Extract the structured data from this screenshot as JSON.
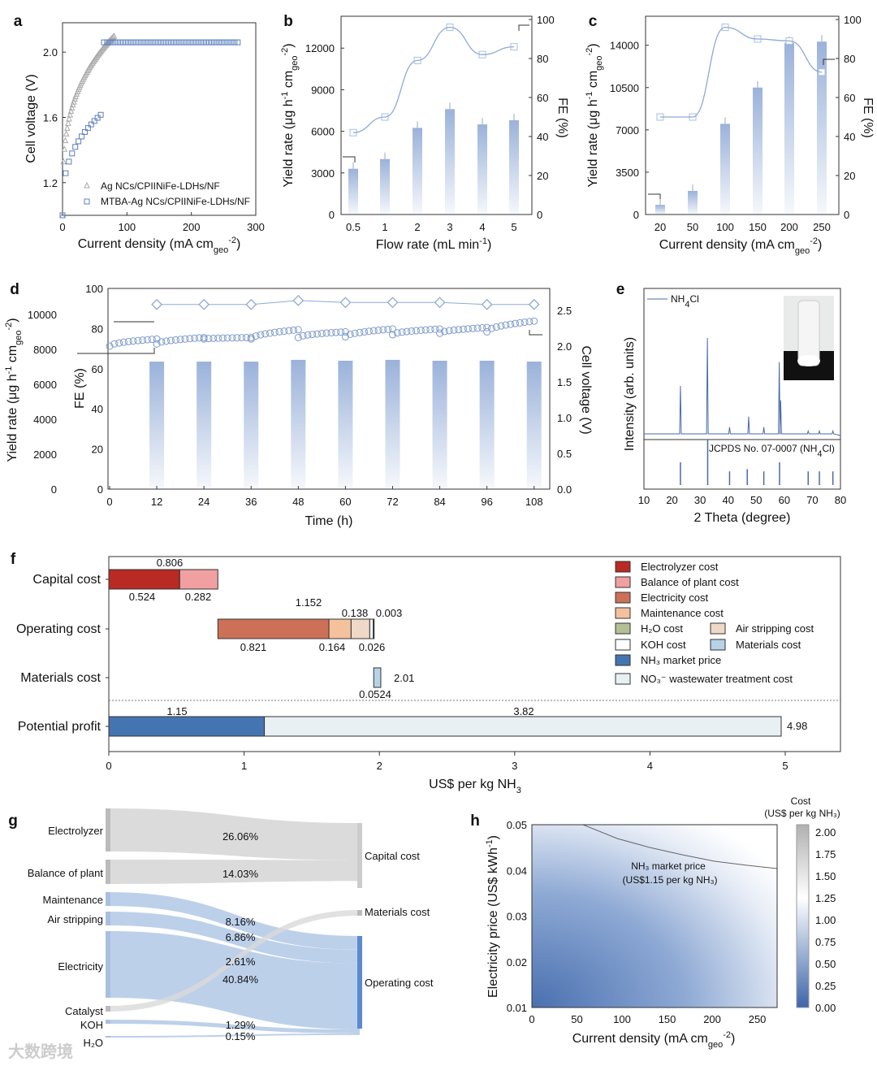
{
  "colors": {
    "blue": "#5b7fbf",
    "lightblue": "#a9bfe0",
    "grey": "#b0b0b0",
    "electrolyzer": "#b82a23",
    "bop": "#f0a0a0",
    "electricity": "#cc7058",
    "maintenance": "#f4c19d",
    "h2o": "#b5bf96",
    "air": "#f0d8c8",
    "koh": "#ffffff",
    "materials": "#b8d2e6",
    "nh3": "#4575b0",
    "no3": "#e8f0f4"
  },
  "watermark": "大数跨境",
  "chart_data": [
    {
      "panel": "a",
      "type": "scatter",
      "xlabel": "Current density (mA cm",
      "xsub": "geo",
      "xsup": "-2",
      "ylabel": "Cell voltage (V)",
      "xlim": [
        0,
        300
      ],
      "ylim": [
        1.0,
        2.18
      ],
      "xticks": [
        "0",
        "100",
        "200",
        "300"
      ],
      "yticks": [
        "1.2",
        "1.6",
        "2.0"
      ],
      "series": [
        {
          "name": "Ag NCs/CPIINiFe-LDHs/NF",
          "x_max": 80,
          "v_start": 1.0,
          "v_end": 2.1
        },
        {
          "name": "MTBA-Ag NCs/CPIINiFe-LDHs/NF",
          "x_max": 272,
          "v_start": 1.0,
          "v_end": 2.06
        }
      ]
    },
    {
      "panel": "b",
      "type": "bar+line",
      "xlabel": "Flow rate (mL min",
      "xsup": "-1",
      "ylabel": "Yield rate (μg h",
      "ylabel_sup": "-1",
      "ylabel_mid": " cm",
      "ylabel_sub": "geo",
      "ylabel_sup2": "-2",
      "y2label": "FE (%)",
      "categories": [
        "0.5",
        "1",
        "2",
        "3",
        "4",
        "5"
      ],
      "ylim": [
        0,
        14300
      ],
      "yticks": [
        "0",
        "3000",
        "6000",
        "9000",
        "12000"
      ],
      "y2ticks": [
        "0",
        "20",
        "40",
        "60",
        "80",
        "100"
      ],
      "series": [
        {
          "name": "Yield rate",
          "values": [
            3300,
            4000,
            6250,
            7600,
            6500,
            6800
          ]
        },
        {
          "name": "FE",
          "values": [
            42,
            50,
            79,
            96,
            82,
            86
          ]
        }
      ]
    },
    {
      "panel": "c",
      "type": "bar+line",
      "xlabel": "Current density (mA cm",
      "xsub": "geo",
      "xsup": "-2",
      "ylabel": "Yield rate (μg h",
      "y2label": "FE (%)",
      "categories": [
        "20",
        "50",
        "100",
        "150",
        "200",
        "250"
      ],
      "ylim": [
        0,
        16400
      ],
      "yticks": [
        "0",
        "3500",
        "7000",
        "10500",
        "14000"
      ],
      "y2ticks": [
        "0",
        "20",
        "40",
        "60",
        "80",
        "100"
      ],
      "series": [
        {
          "name": "Yield rate",
          "values": [
            800,
            1950,
            7500,
            10500,
            14200,
            14300
          ]
        },
        {
          "name": "FE",
          "values": [
            50,
            50,
            96,
            90,
            89,
            73
          ]
        }
      ]
    },
    {
      "panel": "d",
      "type": "bar+line",
      "xlabel": "Time (h)",
      "ylabel": "Yield rate (μg h",
      "y2label": "FE (%)",
      "y3label": "Cell voltage (V)",
      "xticks": [
        "0",
        "12",
        "24",
        "36",
        "48",
        "60",
        "72",
        "84",
        "96",
        "108"
      ],
      "yticks": [
        "0",
        "2000",
        "4000",
        "6000",
        "8000",
        "10000"
      ],
      "fe_ticks": [
        "0",
        "20",
        "40",
        "60",
        "80",
        "100"
      ],
      "v_ticks": [
        "0.0",
        "0.5",
        "1.0",
        "1.5",
        "2.0",
        "2.5"
      ],
      "x": [
        12,
        24,
        36,
        48,
        60,
        72,
        84,
        96,
        108
      ],
      "yield": [
        7300,
        7300,
        7300,
        7400,
        7350,
        7400,
        7350,
        7350,
        7300
      ],
      "fe": [
        92,
        92,
        92,
        94,
        93,
        93,
        93,
        92,
        92
      ],
      "voltage_segments": [
        [
          2.0,
          2.1
        ],
        [
          2.03,
          2.12
        ],
        [
          2.1,
          2.12
        ],
        [
          2.1,
          2.23
        ],
        [
          2.12,
          2.2
        ],
        [
          2.13,
          2.24
        ],
        [
          2.16,
          2.24
        ],
        [
          2.18,
          2.26
        ],
        [
          2.2,
          2.35
        ]
      ]
    },
    {
      "panel": "e",
      "type": "line",
      "xlabel": "2 Theta (degree)",
      "ylabel": "Intensity (arb. units)",
      "legend": "NH",
      "legend_sub": "4",
      "legend_tail": "Cl",
      "ref_label": "JCPDS No. 07-0007 (NH",
      "ref_sub": "4",
      "ref_tail": "Cl)",
      "xlim": [
        10,
        80
      ],
      "xticks": [
        "10",
        "20",
        "30",
        "40",
        "50",
        "60",
        "70",
        "80"
      ],
      "peaks": [
        [
          23.0,
          0.5
        ],
        [
          32.6,
          1.0
        ],
        [
          40.5,
          0.07
        ],
        [
          47.3,
          0.18
        ],
        [
          52.7,
          0.07
        ],
        [
          58.2,
          0.75
        ],
        [
          58.7,
          0.35
        ],
        [
          68.5,
          0.03
        ],
        [
          72.5,
          0.03
        ],
        [
          77.3,
          0.03
        ]
      ],
      "refs": [
        [
          23.0,
          0.5
        ],
        [
          32.7,
          1.0
        ],
        [
          40.5,
          0.3
        ],
        [
          46.8,
          0.35
        ],
        [
          52.7,
          0.3
        ],
        [
          58.3,
          0.5
        ],
        [
          68.5,
          0.3
        ],
        [
          72.5,
          0.3
        ],
        [
          77.3,
          0.3
        ]
      ]
    },
    {
      "panel": "f",
      "type": "bar",
      "xlabel": "US$ per kg NH",
      "xsub": "3",
      "xlim": [
        0,
        5.4
      ],
      "xticks": [
        "0",
        "1",
        "2",
        "3",
        "4",
        "5"
      ],
      "rows": [
        {
          "label": "Capital  cost",
          "total": "0.806",
          "segments": [
            {
              "name": "Electrolyzer cost",
              "value": 0.524,
              "color": "electrolyzer",
              "label": "0.524"
            },
            {
              "name": "Balance of plant cost",
              "value": 0.282,
              "color": "bop",
              "label": "0.282"
            }
          ]
        },
        {
          "label": "Operating cost",
          "offset": 0.806,
          "total": "1.152",
          "segments": [
            {
              "name": "Electricity cost",
              "value": 0.821,
              "color": "electricity",
              "label": "0.821"
            },
            {
              "name": "Maintenance cost",
              "value": 0.164,
              "color": "maintenance",
              "label": "0.164"
            },
            {
              "name": "Air stripping cost",
              "value": 0.138,
              "color": "air",
              "label": "0.138"
            },
            {
              "name": "KOH cost",
              "value": 0.026,
              "color": "koh",
              "label": "0.026"
            },
            {
              "name": "H2O cost",
              "value": 0.003,
              "color": "h2o",
              "label": "0.003"
            }
          ]
        },
        {
          "label": "Materials cost",
          "offset": 1.958,
          "total": "2.01",
          "segments": [
            {
              "name": "Materials cost",
              "value": 0.0524,
              "color": "materials",
              "label": "0.0524"
            }
          ]
        },
        {
          "label": "Potential profit",
          "total": "4.98",
          "segments": [
            {
              "name": "NH3 market price",
              "value": 1.15,
              "color": "nh3",
              "label": "1.15"
            },
            {
              "name": "NO3- wastewater treatment cost",
              "value": 3.82,
              "color": "no3",
              "label": "3.82"
            }
          ]
        }
      ],
      "legend": [
        {
          "text": "Electrolyzer cost",
          "color": "electrolyzer"
        },
        {
          "text": "Balance of plant cost",
          "color": "bop"
        },
        {
          "text": "Electricity cost",
          "color": "electricity"
        },
        {
          "text": "Maintenance cost",
          "color": "maintenance"
        },
        {
          "text": "H₂O cost",
          "color": "h2o"
        },
        {
          "text": "Air stripping cost",
          "color": "air"
        },
        {
          "text": "KOH cost",
          "color": "koh"
        },
        {
          "text": "Materials cost",
          "color": "materials"
        },
        {
          "text": "NH₃ market price",
          "color": "nh3"
        },
        {
          "text": "NO₃⁻ wastewater treatment cost",
          "color": "no3"
        }
      ]
    },
    {
      "panel": "g",
      "type": "sankey",
      "sources": [
        {
          "label": "Electrolyzer",
          "pct": "26.06%"
        },
        {
          "label": "Balance of plant",
          "pct": "14.03%"
        },
        {
          "label": "Maintenance",
          "pct": "8.16%"
        },
        {
          "label": "Air stripping",
          "pct": "6.86%"
        },
        {
          "label": "Electricity",
          "pct": "40.84%"
        },
        {
          "label": "Catalyst",
          "pct": "2.61%"
        },
        {
          "label": "KOH",
          "pct": "1.29%"
        },
        {
          "label": "H₂O",
          "pct": "0.15%"
        }
      ],
      "targets": [
        "Capital cost",
        "Materials cost",
        "Operating cost"
      ]
    },
    {
      "panel": "h",
      "type": "heatmap",
      "xlabel": "Current density (mA cm",
      "xsub": "geo",
      "xsup": "-2",
      "ylabel": "Electricity price (US$ kWh",
      "ylabel_sup": "-1",
      "xlim": [
        0,
        272
      ],
      "ylim": [
        0.01,
        0.05
      ],
      "xticks": [
        "0",
        "50",
        "100",
        "150",
        "200",
        "250"
      ],
      "yticks": [
        "0.01",
        "0.02",
        "0.03",
        "0.04",
        "0.05"
      ],
      "colorbar_title": "Cost",
      "colorbar_unit": "(US$ per kg NH₃)",
      "colorbar_ticks": [
        "0.00",
        "0.25",
        "0.50",
        "0.75",
        "1.00",
        "1.25",
        "1.50",
        "1.75",
        "2.00"
      ],
      "annotation": "NH₃ market price",
      "annotation2": "(US$1.15 per kg NH₃)"
    }
  ]
}
